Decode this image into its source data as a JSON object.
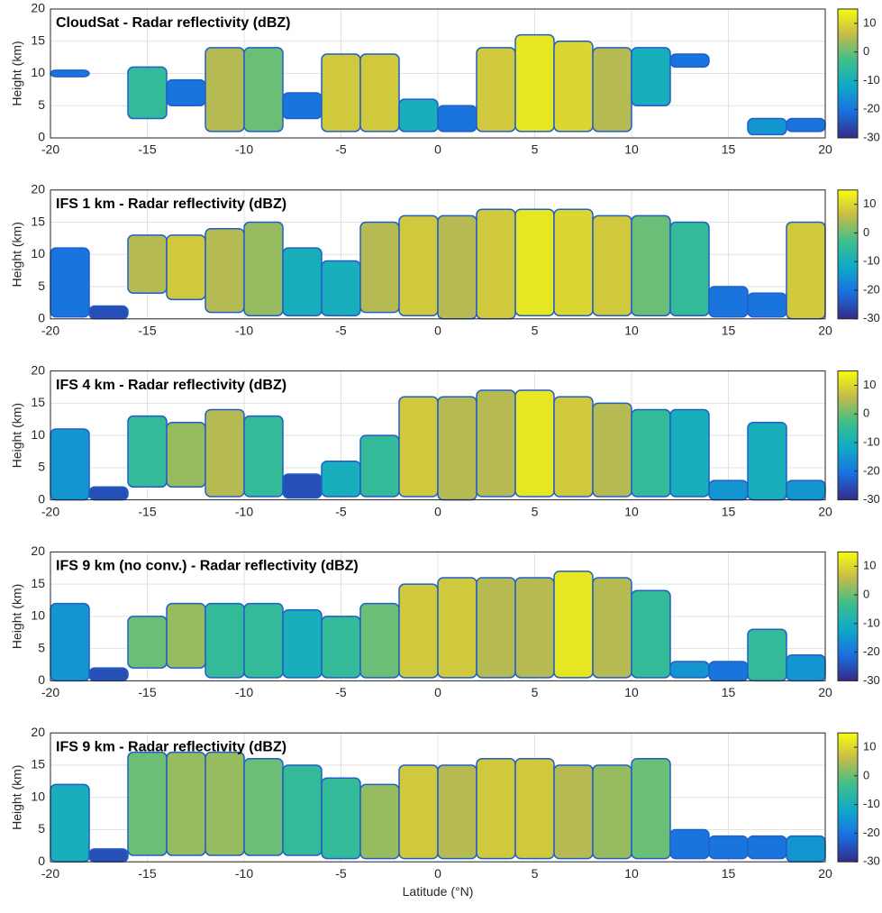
{
  "chart_data": [
    {
      "type": "heatmap",
      "title": "CloudSat - Radar reflectivity (dBZ)",
      "ylabel": "Height (km)",
      "x": [
        -19,
        -17,
        -15,
        -13,
        -11,
        -9,
        -7,
        -5,
        -3,
        -1,
        1,
        3,
        5,
        7,
        9,
        11,
        13,
        15,
        17,
        19
      ],
      "tops": [
        10.5,
        null,
        11,
        9,
        14,
        14,
        7,
        13,
        13,
        6,
        5,
        14,
        16,
        15,
        14,
        14,
        13,
        null,
        3,
        3
      ],
      "bases": [
        9.5,
        null,
        3,
        5,
        1,
        1,
        3,
        1,
        1,
        1,
        1,
        1,
        1,
        1,
        1,
        5,
        11,
        null,
        0.5,
        1
      ],
      "values": [
        -20,
        null,
        -5,
        -20,
        5,
        0,
        -20,
        8,
        8,
        -10,
        -20,
        8,
        12,
        10,
        5,
        -10,
        -20,
        null,
        -15,
        -20
      ],
      "xlim": [
        -20,
        20
      ],
      "xticks": [
        -20,
        -15,
        -10,
        -5,
        0,
        5,
        10,
        15,
        20
      ],
      "ylim": [
        0,
        20
      ],
      "yticks": [
        0,
        5,
        10,
        15,
        20
      ],
      "clim": [
        -30,
        15
      ],
      "cticks": [
        -30,
        -20,
        -10,
        0,
        10
      ],
      "colormap": [
        "#352a87",
        "#1a6fdf",
        "#0fa9c9",
        "#3dbf8a",
        "#c4bb4b",
        "#f9fb0e"
      ],
      "grid": true
    },
    {
      "type": "heatmap",
      "title": "IFS 1 km - Radar reflectivity (dBZ)",
      "ylabel": "Height (km)",
      "x": [
        -19,
        -17,
        -15,
        -13,
        -11,
        -9,
        -7,
        -5,
        -3,
        -1,
        1,
        3,
        5,
        7,
        9,
        11,
        13,
        15,
        17,
        19
      ],
      "tops": [
        11,
        2,
        13,
        13,
        14,
        15,
        11,
        9,
        15,
        16,
        16,
        17,
        17,
        17,
        16,
        16,
        15,
        5,
        4,
        15
      ],
      "bases": [
        0.3,
        0,
        4,
        3,
        1,
        0.5,
        0.5,
        0.5,
        1,
        0.5,
        0,
        0,
        0.5,
        0.5,
        0.5,
        0.5,
        0.5,
        0.3,
        0.3,
        0
      ],
      "values": [
        -20,
        -25,
        5,
        8,
        5,
        3,
        -10,
        -10,
        5,
        8,
        5,
        8,
        12,
        10,
        8,
        0,
        -5,
        -20,
        -20,
        8
      ],
      "xlim": [
        -20,
        20
      ],
      "xticks": [
        -20,
        -15,
        -10,
        -5,
        0,
        5,
        10,
        15,
        20
      ],
      "ylim": [
        0,
        20
      ],
      "yticks": [
        0,
        5,
        10,
        15,
        20
      ],
      "clim": [
        -30,
        15
      ],
      "cticks": [
        -30,
        -20,
        -10,
        0,
        10
      ],
      "colormap": [
        "#352a87",
        "#1a6fdf",
        "#0fa9c9",
        "#3dbf8a",
        "#c4bb4b",
        "#f9fb0e"
      ],
      "grid": true
    },
    {
      "type": "heatmap",
      "title": "IFS 4 km - Radar reflectivity (dBZ)",
      "ylabel": "Height (km)",
      "x": [
        -19,
        -17,
        -15,
        -13,
        -11,
        -9,
        -7,
        -5,
        -3,
        -1,
        1,
        3,
        5,
        7,
        9,
        11,
        13,
        15,
        17,
        19
      ],
      "tops": [
        11,
        2,
        13,
        12,
        14,
        13,
        4,
        6,
        10,
        16,
        16,
        17,
        17,
        16,
        15,
        14,
        14,
        3,
        12,
        3
      ],
      "bases": [
        0,
        0,
        2,
        2,
        0.5,
        0.5,
        0.3,
        0.5,
        0.5,
        0.5,
        0,
        0.5,
        0.5,
        0.5,
        0.5,
        0.5,
        0.5,
        0,
        0,
        0
      ],
      "values": [
        -15,
        -25,
        -5,
        3,
        5,
        -5,
        -25,
        -10,
        -5,
        8,
        5,
        5,
        12,
        8,
        5,
        -5,
        -10,
        -15,
        -10,
        -15
      ],
      "xlim": [
        -20,
        20
      ],
      "xticks": [
        -20,
        -15,
        -10,
        -5,
        0,
        5,
        10,
        15,
        20
      ],
      "ylim": [
        0,
        20
      ],
      "yticks": [
        0,
        5,
        10,
        15,
        20
      ],
      "clim": [
        -30,
        15
      ],
      "cticks": [
        -30,
        -20,
        -10,
        0,
        10
      ],
      "colormap": [
        "#352a87",
        "#1a6fdf",
        "#0fa9c9",
        "#3dbf8a",
        "#c4bb4b",
        "#f9fb0e"
      ],
      "grid": true
    },
    {
      "type": "heatmap",
      "title": "IFS 9 km (no conv.) - Radar reflectivity (dBZ)",
      "ylabel": "Height (km)",
      "x": [
        -19,
        -17,
        -15,
        -13,
        -11,
        -9,
        -7,
        -5,
        -3,
        -1,
        1,
        3,
        5,
        7,
        9,
        11,
        13,
        15,
        17,
        19
      ],
      "tops": [
        12,
        2,
        10,
        12,
        12,
        12,
        11,
        10,
        12,
        15,
        16,
        16,
        16,
        17,
        16,
        14,
        3,
        3,
        8,
        4
      ],
      "bases": [
        0,
        0,
        2,
        2,
        0.5,
        0.5,
        0.5,
        0.5,
        0.5,
        0.5,
        0.5,
        0.5,
        0.5,
        0.5,
        0.5,
        0.5,
        0.5,
        0,
        0,
        0
      ],
      "values": [
        -15,
        -25,
        0,
        3,
        -5,
        -5,
        -10,
        -5,
        0,
        8,
        8,
        5,
        5,
        12,
        5,
        -5,
        -15,
        -20,
        -5,
        -15
      ],
      "xlim": [
        -20,
        20
      ],
      "xticks": [
        -20,
        -15,
        -10,
        -5,
        0,
        5,
        10,
        15,
        20
      ],
      "ylim": [
        0,
        20
      ],
      "yticks": [
        0,
        5,
        10,
        15,
        20
      ],
      "clim": [
        -30,
        15
      ],
      "cticks": [
        -30,
        -20,
        -10,
        0,
        10
      ],
      "colormap": [
        "#352a87",
        "#1a6fdf",
        "#0fa9c9",
        "#3dbf8a",
        "#c4bb4b",
        "#f9fb0e"
      ],
      "grid": true
    },
    {
      "type": "heatmap",
      "title": "IFS 9 km - Radar reflectivity (dBZ)",
      "ylabel": "Height (km)",
      "xlabel": "Latitude (°N)",
      "x": [
        -19,
        -17,
        -15,
        -13,
        -11,
        -9,
        -7,
        -5,
        -3,
        -1,
        1,
        3,
        5,
        7,
        9,
        11,
        13,
        15,
        17,
        19
      ],
      "tops": [
        12,
        2,
        17,
        17,
        17,
        16,
        15,
        13,
        12,
        15,
        15,
        16,
        16,
        15,
        15,
        16,
        5,
        4,
        4,
        4
      ],
      "bases": [
        0,
        0,
        1,
        1,
        1,
        1,
        1,
        0.5,
        0.5,
        0.5,
        0.5,
        0.5,
        0.5,
        0.5,
        0.5,
        0.5,
        0.5,
        0.5,
        0.5,
        0
      ],
      "values": [
        -10,
        -25,
        0,
        3,
        3,
        0,
        -5,
        -5,
        3,
        8,
        5,
        8,
        8,
        5,
        3,
        0,
        -20,
        -20,
        -20,
        -15
      ],
      "xlim": [
        -20,
        20
      ],
      "xticks": [
        -20,
        -15,
        -10,
        -5,
        0,
        5,
        10,
        15,
        20
      ],
      "ylim": [
        0,
        20
      ],
      "yticks": [
        0,
        5,
        10,
        15,
        20
      ],
      "clim": [
        -30,
        15
      ],
      "cticks": [
        -30,
        -20,
        -10,
        0,
        10
      ],
      "colormap": [
        "#352a87",
        "#1a6fdf",
        "#0fa9c9",
        "#3dbf8a",
        "#c4bb4b",
        "#f9fb0e"
      ],
      "grid": true
    }
  ]
}
